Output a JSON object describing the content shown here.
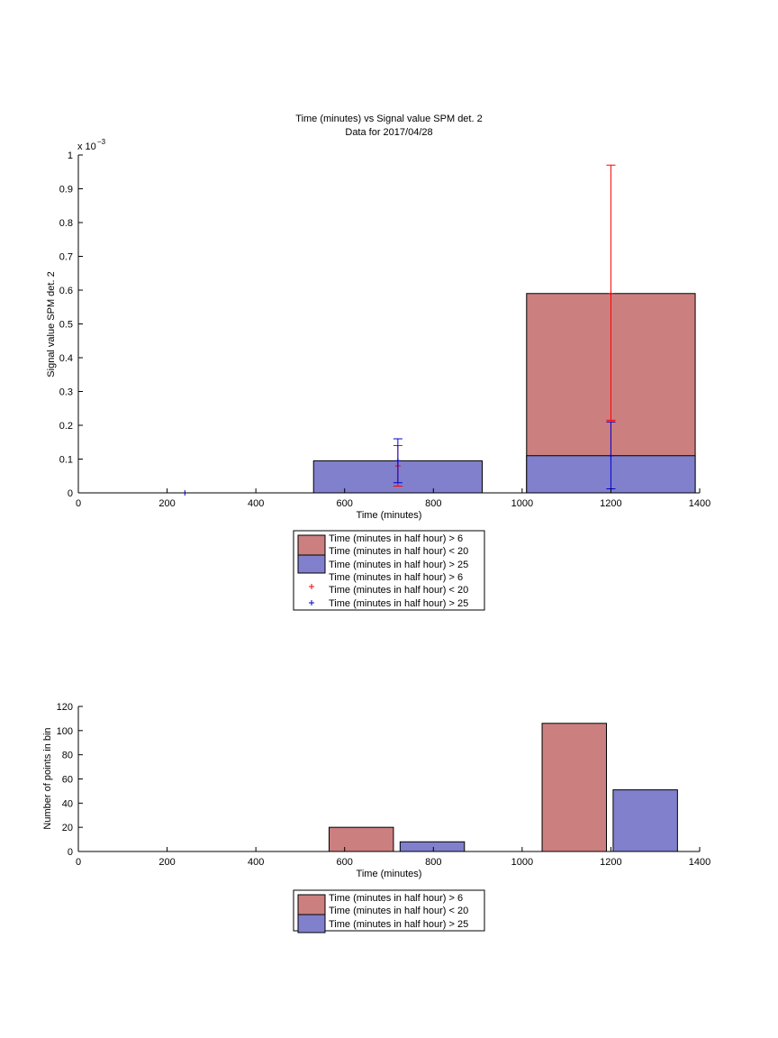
{
  "chart_data": [
    {
      "type": "bar",
      "title": "Time (minutes) vs Signal value SPM det. 2",
      "subtitle": "Data for 2017/04/28",
      "xlabel": "Time (minutes)",
      "ylabel": "Signal value SPM det. 2",
      "exponent_label": "x 10",
      "exponent_power": "−3",
      "xlim": [
        0,
        1400
      ],
      "ylim": [
        0,
        0.001
      ],
      "xticks": [
        "0",
        "200",
        "400",
        "600",
        "800",
        "1000",
        "1200",
        "1400"
      ],
      "yticks": [
        "0",
        "0.1",
        "0.2",
        "0.3",
        "0.4",
        "0.5",
        "0.6",
        "0.7",
        "0.8",
        "0.9",
        "1"
      ],
      "colors": {
        "red": "#cc7f7f",
        "blue": "#8080cc",
        "red_err": "#ff0000",
        "blue_err": "#0000cc"
      },
      "series": [
        {
          "name": "Time (minutes in half hour) > 6 Time (minutes in half hour) < 20",
          "kind": "bar",
          "color": "#cc7f7f",
          "bars": [
            {
              "x_start": 1010,
              "x_end": 1390,
              "value": 0.00059
            }
          ]
        },
        {
          "name": "Time (minutes in half hour) > 25",
          "kind": "bar",
          "color": "#8080cc",
          "bars": [
            {
              "x_start": 530,
              "x_end": 910,
              "value": 9.5e-05
            },
            {
              "x_start": 1010,
              "x_end": 1390,
              "value": 0.00011
            }
          ]
        },
        {
          "name": "Time (minutes in half hour) > 6 Time (minutes in half hour) < 20",
          "kind": "errorbar",
          "color": "#ff0000",
          "points": [
            {
              "x": 720,
              "y": 8e-05,
              "lo": 2e-05,
              "hi": 0.00014
            },
            {
              "x": 1200,
              "y": 0.00059,
              "lo": 0.000215,
              "hi": 0.00097
            }
          ]
        },
        {
          "name": "Time (minutes in half hour) > 25",
          "kind": "errorbar",
          "color": "#0000cc",
          "points": [
            {
              "x": 240,
              "y": 0.0,
              "lo": 0.0,
              "hi": 0.0
            },
            {
              "x": 720,
              "y": 9.5e-05,
              "lo": 3e-05,
              "hi": 0.00016
            },
            {
              "x": 1200,
              "y": 0.00011,
              "lo": 1.2e-05,
              "hi": 0.00021
            }
          ]
        }
      ],
      "legend": [
        {
          "kind": "patch",
          "color": "#cc7f7f",
          "lines": [
            "Time (minutes in half hour) > 6",
            "Time (minutes in half hour) < 20"
          ]
        },
        {
          "kind": "patch",
          "color": "#8080cc",
          "lines": [
            "Time (minutes in half hour) > 25"
          ]
        },
        {
          "kind": "marker",
          "color": "#ff0000",
          "lines": [
            "Time (minutes in half hour) > 6",
            "Time (minutes in half hour) < 20"
          ]
        },
        {
          "kind": "marker",
          "color": "#0000cc",
          "lines": [
            "Time (minutes in half hour) > 25"
          ]
        }
      ],
      "legend_placement": "below"
    },
    {
      "type": "bar",
      "xlabel": "Time (minutes)",
      "ylabel": "Number of points in bin",
      "xlim": [
        0,
        1400
      ],
      "ylim": [
        0,
        120
      ],
      "xticks": [
        "0",
        "200",
        "400",
        "600",
        "800",
        "1000",
        "1200",
        "1400"
      ],
      "yticks": [
        "0",
        "20",
        "40",
        "60",
        "80",
        "100",
        "120"
      ],
      "series": [
        {
          "name": "Time (minutes in half hour) > 6 Time (minutes in half hour) < 20",
          "color": "#cc7f7f",
          "bars": [
            {
              "x_start": 565,
              "x_end": 710,
              "value": 20
            },
            {
              "x_start": 1045,
              "x_end": 1190,
              "value": 106
            }
          ]
        },
        {
          "name": "Time (minutes in half hour) > 25",
          "color": "#8080cc",
          "bars": [
            {
              "x_start": 725,
              "x_end": 870,
              "value": 8
            },
            {
              "x_start": 1205,
              "x_end": 1350,
              "value": 51
            }
          ]
        }
      ],
      "legend": [
        {
          "kind": "patch",
          "color": "#cc7f7f",
          "lines": [
            "Time (minutes in half hour) > 6",
            "Time (minutes in half hour) < 20"
          ]
        },
        {
          "kind": "patch",
          "color": "#8080cc",
          "lines": [
            "Time (minutes in half hour) > 25"
          ]
        }
      ],
      "legend_placement": "below"
    }
  ]
}
